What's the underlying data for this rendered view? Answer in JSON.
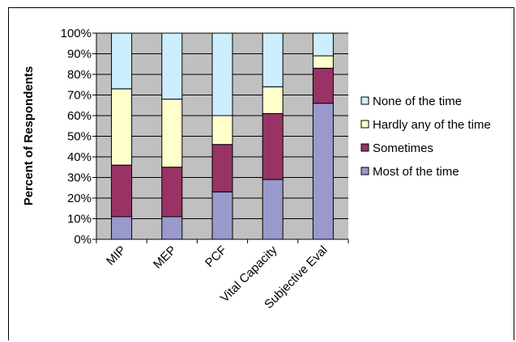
{
  "chart_data": {
    "type": "bar",
    "stacked": true,
    "percent": true,
    "title": "",
    "xlabel": "",
    "ylabel": "Percent of Respondents",
    "ylim": [
      0,
      100
    ],
    "y_ticks": [
      "0%",
      "10%",
      "20%",
      "30%",
      "40%",
      "50%",
      "60%",
      "70%",
      "80%",
      "90%",
      "100%"
    ],
    "grid": true,
    "legend_position": "right",
    "categories": [
      "MIP",
      "MEP",
      "PCF",
      "Vital Capacity",
      "Subjective Eval"
    ],
    "series": [
      {
        "name": "Most of the time",
        "color": "#9999cc",
        "values": [
          11,
          11,
          23,
          29,
          66
        ]
      },
      {
        "name": "Sometimes",
        "color": "#993366",
        "values": [
          25,
          24,
          23,
          32,
          17
        ]
      },
      {
        "name": "Hardly any of the time",
        "color": "#ffffcc",
        "values": [
          37,
          33,
          14,
          13,
          6
        ]
      },
      {
        "name": "None of the time",
        "color": "#cceeff",
        "values": [
          27,
          32,
          40,
          26,
          11
        ]
      }
    ],
    "legend_order": [
      "None of the time",
      "Hardly any of the time",
      "Sometimes",
      "Most of the time"
    ],
    "plot_background": "#c0c0c0"
  }
}
